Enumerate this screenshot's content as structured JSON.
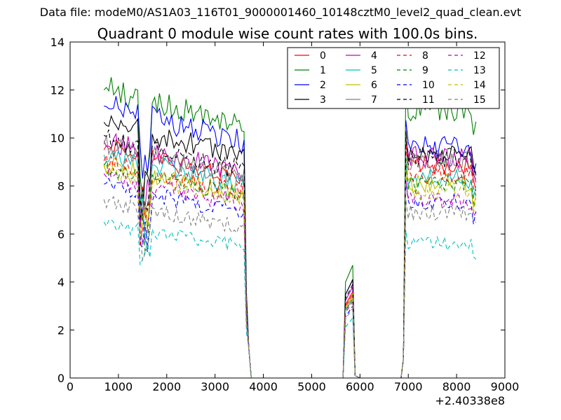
{
  "figure": {
    "suptitle": "Data file: modeM0/AS1A03_116T01_9000001460_10148cztM0_level2_quad_clean.evt",
    "title": "Quadrant 0 module wise count rates with 100.0s bins.",
    "x_offset_label": "+2.40338e8"
  },
  "chart_data": {
    "type": "line",
    "title": "Quadrant 0 module wise count rates with 100.0s bins.",
    "xlabel": "",
    "ylabel": "",
    "xlim": [
      0,
      9000
    ],
    "ylim": [
      0,
      14
    ],
    "xticks": [
      0,
      1000,
      2000,
      3000,
      4000,
      5000,
      6000,
      7000,
      8000,
      9000
    ],
    "yticks": [
      0,
      2,
      4,
      6,
      8,
      10,
      12,
      14
    ],
    "x_offset": "+2.40338e8",
    "grid": false,
    "legend": {
      "placement": "top-right",
      "columns": 4
    },
    "series": [
      {
        "name": "0",
        "color": "#ff0000",
        "dash": "solid",
        "level": 9.6,
        "bump": 3.6,
        "tail": 8.9
      },
      {
        "name": "1",
        "color": "#008000",
        "dash": "solid",
        "level": 12.1,
        "bump": 4.7,
        "tail": 11.2
      },
      {
        "name": "2",
        "color": "#0000ff",
        "dash": "solid",
        "level": 11.4,
        "bump": 4.1,
        "tail": 9.6
      },
      {
        "name": "3",
        "color": "#000000",
        "dash": "solid",
        "level": 10.7,
        "bump": 4.1,
        "tail": 9.3
      },
      {
        "name": "4",
        "color": "#bf00bf",
        "dash": "solid",
        "level": 9.9,
        "bump": 3.8,
        "tail": 9.2
      },
      {
        "name": "5",
        "color": "#00bfbf",
        "dash": "solid",
        "level": 9.3,
        "bump": 3.3,
        "tail": 8.3
      },
      {
        "name": "6",
        "color": "#bfbf00",
        "dash": "solid",
        "level": 8.9,
        "bump": 3.5,
        "tail": 8.1
      },
      {
        "name": "7",
        "color": "#808080",
        "dash": "solid",
        "level": 9.7,
        "bump": 3.4,
        "tail": 9.0
      },
      {
        "name": "8",
        "color": "#ff0000",
        "dash": "dashed",
        "level": 9.0,
        "bump": 3.5,
        "tail": 8.5
      },
      {
        "name": "9",
        "color": "#008000",
        "dash": "dashed",
        "level": 8.8,
        "bump": 3.3,
        "tail": 8.1
      },
      {
        "name": "10",
        "color": "#0000ff",
        "dash": "dashed",
        "level": 8.0,
        "bump": 3.0,
        "tail": 7.3
      },
      {
        "name": "11",
        "color": "#000000",
        "dash": "dashed",
        "level": 10.0,
        "bump": 3.9,
        "tail": 9.2
      },
      {
        "name": "12",
        "color": "#bf00bf",
        "dash": "dashed",
        "level": 8.4,
        "bump": 3.2,
        "tail": 7.4
      },
      {
        "name": "13",
        "color": "#00bfbf",
        "dash": "dashed",
        "level": 6.4,
        "bump": 2.5,
        "tail": 5.6
      },
      {
        "name": "14",
        "color": "#bfbf00",
        "dash": "dashed",
        "level": 8.7,
        "bump": 3.4,
        "tail": 7.8
      },
      {
        "name": "15",
        "color": "#808080",
        "dash": "dashed",
        "level": 7.3,
        "bump": 2.9,
        "tail": 6.9
      }
    ],
    "segments": {
      "active_1": [
        700,
        3600
      ],
      "dip_1": [
        1450,
        1650
      ],
      "zero_1": [
        3750,
        5650
      ],
      "bump": [
        5700,
        5900
      ],
      "zero_2": [
        6000,
        6850
      ],
      "active_2": [
        6950,
        8400
      ],
      "x_last": 8400
    }
  }
}
